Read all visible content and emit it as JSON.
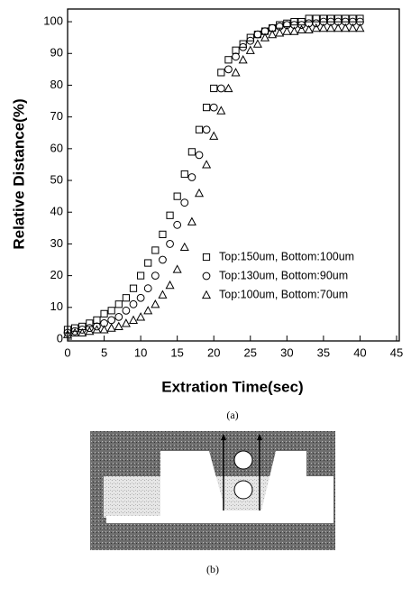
{
  "chart_data": {
    "type": "scatter",
    "xlabel": "Extration Time(sec)",
    "ylabel": "Relative Distance(%)",
    "caption": "(a)",
    "x": [
      0,
      1,
      2,
      3,
      4,
      5,
      6,
      7,
      8,
      9,
      10,
      11,
      12,
      13,
      14,
      15,
      16,
      17,
      18,
      19,
      20,
      21,
      22,
      23,
      24,
      25,
      26,
      27,
      28,
      29,
      30,
      31,
      32,
      33,
      34,
      35,
      36,
      37,
      38,
      39,
      40
    ],
    "series": [
      {
        "name": "Top:150um, Bottom:100um",
        "color": "#000000",
        "marker": "square",
        "values": [
          3,
          3.5,
          4,
          5,
          6,
          8,
          9,
          11,
          13,
          16,
          20,
          24,
          28,
          33,
          39,
          45,
          52,
          59,
          66,
          73,
          79,
          84,
          88,
          91,
          93,
          95,
          96,
          97,
          98,
          99,
          99.5,
          100,
          100,
          101,
          101,
          101,
          101,
          101,
          101,
          101,
          101
        ]
      },
      {
        "name": "Top:130um, Bottom:90um",
        "color": "#000000",
        "marker": "circle",
        "values": [
          2,
          2.5,
          3,
          3.5,
          4,
          5,
          6,
          7,
          9,
          11,
          13,
          16,
          20,
          25,
          30,
          36,
          43,
          51,
          58,
          66,
          73,
          79,
          85,
          89,
          92,
          94,
          96,
          97,
          98,
          98.5,
          99,
          99,
          99,
          99.5,
          99.5,
          100,
          100,
          100,
          100,
          100,
          100
        ]
      },
      {
        "name": "Top:100um, Bottom:70um",
        "color": "#000000",
        "marker": "triangle",
        "values": [
          1.5,
          2,
          2,
          2.5,
          3,
          3,
          3.5,
          4,
          5,
          6,
          7,
          9,
          11,
          14,
          17,
          22,
          29,
          37,
          46,
          55,
          64,
          72,
          79,
          84,
          88,
          91,
          93,
          95,
          96,
          96.5,
          97,
          97,
          97.5,
          97.5,
          98,
          98,
          98,
          98,
          98,
          98,
          98
        ]
      }
    ],
    "xlim": [
      0,
      45
    ],
    "xticks": [
      0,
      5,
      10,
      15,
      20,
      25,
      30,
      35,
      40,
      45
    ],
    "ylim": [
      0,
      104
    ],
    "yticks": [
      0,
      10,
      20,
      30,
      40,
      50,
      60,
      70,
      80,
      90,
      100
    ],
    "legend": "lower right",
    "grid": false
  },
  "figure_b": {
    "caption": "(b)"
  }
}
